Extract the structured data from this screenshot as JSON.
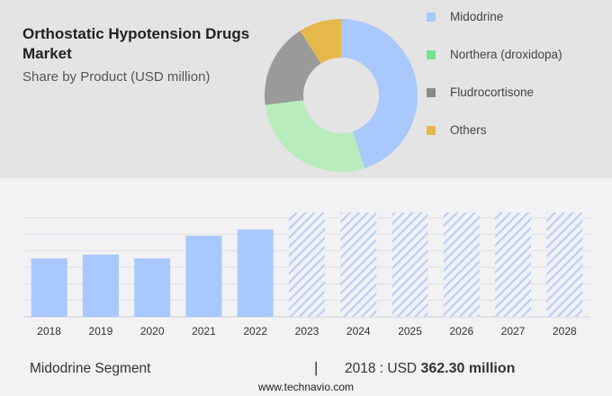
{
  "title": "Orthostatic Hypotension Drugs Market",
  "subtitle": "Share by Product (USD million)",
  "colors": {
    "midodrine": "#a8c8fe",
    "northera": "#b8ecbc",
    "fludro": "#9a9a9a",
    "others": "#e5b84c",
    "hatch": "#b9cff8"
  },
  "legend": [
    {
      "label": "Midodrine",
      "color": "#a8c8fe"
    },
    {
      "label": "Northera (droxidopa)",
      "color": "#72e393"
    },
    {
      "label": "Fludrocortisone",
      "color": "#8a8a8a"
    },
    {
      "label": "Others",
      "color": "#e5b84c"
    }
  ],
  "footer": {
    "segment": "Midodrine Segment",
    "separator": "|",
    "year_label": "2018 : USD ",
    "value": "362.30 million",
    "site": "www.technavio.com"
  },
  "chart_data": [
    {
      "type": "pie",
      "title": "Share by Product (USD million)",
      "donut": true,
      "labels": [
        "Midodrine",
        "Northera (droxidopa)",
        "Fludrocortisone",
        "Others"
      ],
      "values": [
        45,
        28,
        18,
        9
      ],
      "colors": [
        "#a8c8fe",
        "#b8ecbc",
        "#9a9a9a",
        "#e5b84c"
      ]
    },
    {
      "type": "bar",
      "title": "Midodrine Segment",
      "categories": [
        "2018",
        "2019",
        "2020",
        "2021",
        "2022",
        "2023",
        "2024",
        "2025",
        "2026",
        "2027",
        "2028"
      ],
      "values": [
        362.3,
        385,
        362,
        502,
        541,
        null,
        null,
        null,
        null,
        null,
        null
      ],
      "forecast": [
        false,
        false,
        false,
        false,
        false,
        true,
        true,
        true,
        true,
        true,
        true
      ],
      "ylim": [
        0,
        650
      ],
      "grid": true
    }
  ]
}
